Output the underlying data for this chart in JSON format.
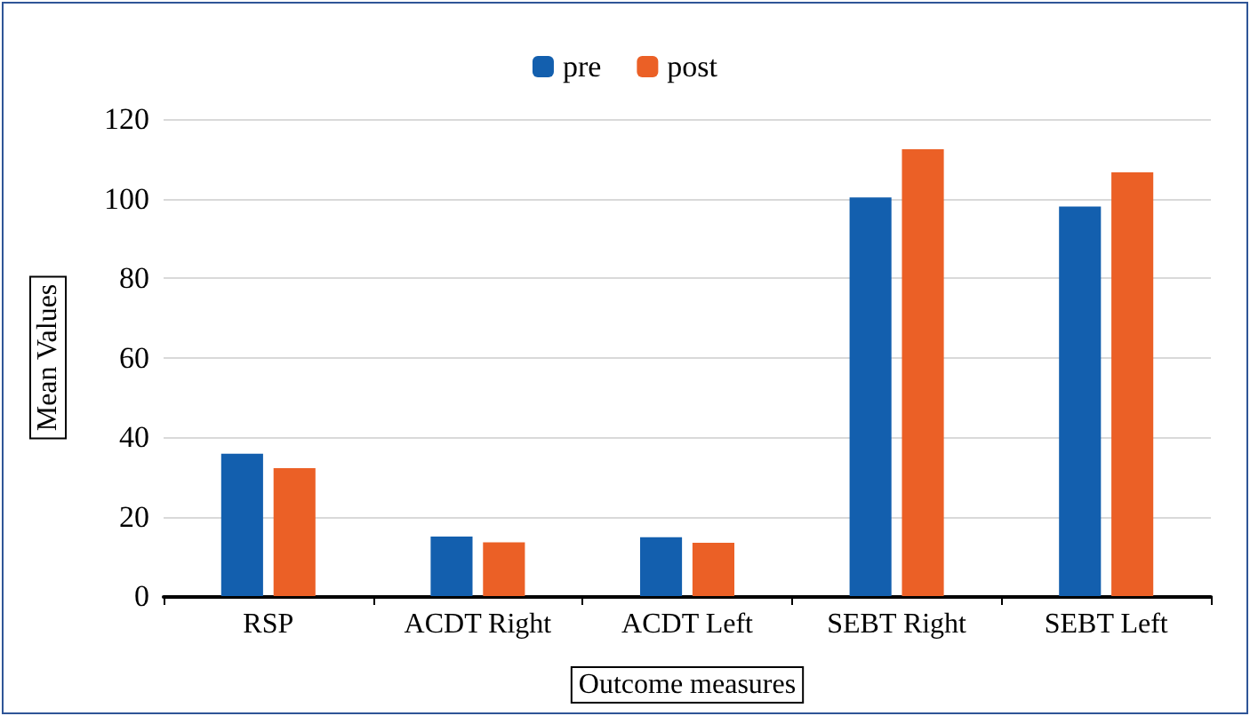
{
  "chart_data": {
    "type": "bar",
    "xlabel": "Outcome measures",
    "ylabel": "Mean Values",
    "categories": [
      "RSP",
      "ACDT Right",
      "ACDT Left",
      "SEBT Right",
      "SEBT Left"
    ],
    "series": [
      {
        "name": "pre",
        "color": "#135fae",
        "values": [
          35.8,
          15,
          14.8,
          100.3,
          98
        ]
      },
      {
        "name": "post",
        "color": "#eb6026",
        "values": [
          32.2,
          13.5,
          13.4,
          112.4,
          106.6
        ]
      }
    ],
    "ylim": [
      0,
      120
    ],
    "yticks": [
      0,
      20,
      40,
      60,
      80,
      100,
      120
    ],
    "grid": "y",
    "legend": "top"
  }
}
